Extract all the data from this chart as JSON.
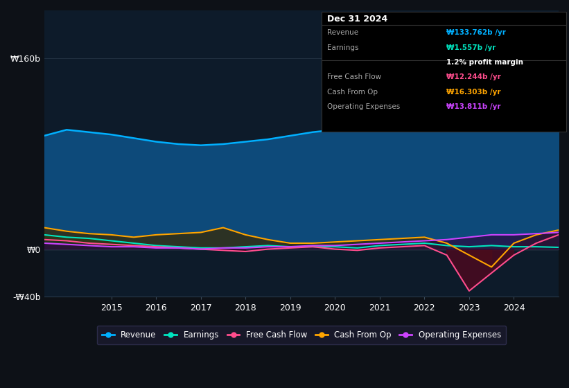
{
  "bg_color": "#0d1117",
  "plot_bg_color": "#0d1b2a",
  "title": "Dec 31 2024",
  "tooltip_items": [
    {
      "label": "Revenue",
      "value": "₩133.762b /yr",
      "color": "#00b0ff"
    },
    {
      "label": "Earnings",
      "value": "₩1.557b /yr",
      "color": "#00e5c0"
    },
    {
      "label": "profit_margin",
      "value": "1.2% profit margin",
      "color": "#ffffff"
    },
    {
      "label": "Free Cash Flow",
      "value": "₩12.244b /yr",
      "color": "#ff4d8d"
    },
    {
      "label": "Cash From Op",
      "value": "₩16.303b /yr",
      "color": "#ffa500"
    },
    {
      "label": "Operating Expenses",
      "value": "₩13.811b /yr",
      "color": "#cc44ff"
    }
  ],
  "ylim": [
    -40,
    200
  ],
  "yticks": [
    -40,
    0,
    160
  ],
  "ytick_labels": [
    "-₩40b",
    "₩0",
    "₩160b"
  ],
  "xlabel_years": [
    2015,
    2016,
    2017,
    2018,
    2019,
    2020,
    2021,
    2022,
    2023,
    2024
  ],
  "revenue_color": "#00b0ff",
  "earnings_color": "#00e5c0",
  "fcf_color": "#ff4d8d",
  "cashop_color": "#ffa500",
  "opex_color": "#cc44ff",
  "revenue_fill_color": "#0d4a7a",
  "legend_items": [
    {
      "label": "Revenue",
      "color": "#00b0ff"
    },
    {
      "label": "Earnings",
      "color": "#00e5c0"
    },
    {
      "label": "Free Cash Flow",
      "color": "#ff4d8d"
    },
    {
      "label": "Cash From Op",
      "color": "#ffa500"
    },
    {
      "label": "Operating Expenses",
      "color": "#cc44ff"
    }
  ],
  "years": [
    2013.5,
    2014.0,
    2014.5,
    2015.0,
    2015.5,
    2016.0,
    2016.5,
    2017.0,
    2017.5,
    2018.0,
    2018.5,
    2019.0,
    2019.5,
    2020.0,
    2020.5,
    2021.0,
    2021.5,
    2022.0,
    2022.5,
    2023.0,
    2023.5,
    2024.0,
    2024.5,
    2025.0
  ],
  "revenue": [
    95,
    100,
    98,
    96,
    93,
    90,
    88,
    87,
    88,
    90,
    92,
    95,
    98,
    100,
    103,
    108,
    112,
    118,
    130,
    145,
    148,
    140,
    135,
    133
  ],
  "earnings": [
    12,
    10,
    9,
    7,
    5,
    3,
    2,
    1,
    1,
    2,
    3,
    2,
    2,
    2,
    1,
    3,
    4,
    5,
    3,
    2,
    3,
    2,
    2,
    1.5
  ],
  "fcf": [
    8,
    7,
    5,
    4,
    3,
    2,
    1,
    0,
    -1,
    -2,
    0,
    1,
    2,
    0,
    -1,
    1,
    2,
    3,
    -5,
    -35,
    -20,
    -5,
    5,
    12
  ],
  "cashop": [
    18,
    15,
    13,
    12,
    10,
    12,
    13,
    14,
    18,
    12,
    8,
    5,
    5,
    6,
    7,
    8,
    9,
    10,
    5,
    -5,
    -15,
    5,
    12,
    16
  ],
  "opex": [
    5,
    4,
    3,
    2,
    2,
    1,
    1,
    0,
    1,
    1,
    2,
    2,
    3,
    3,
    4,
    5,
    6,
    7,
    8,
    10,
    12,
    12,
    13,
    14
  ]
}
